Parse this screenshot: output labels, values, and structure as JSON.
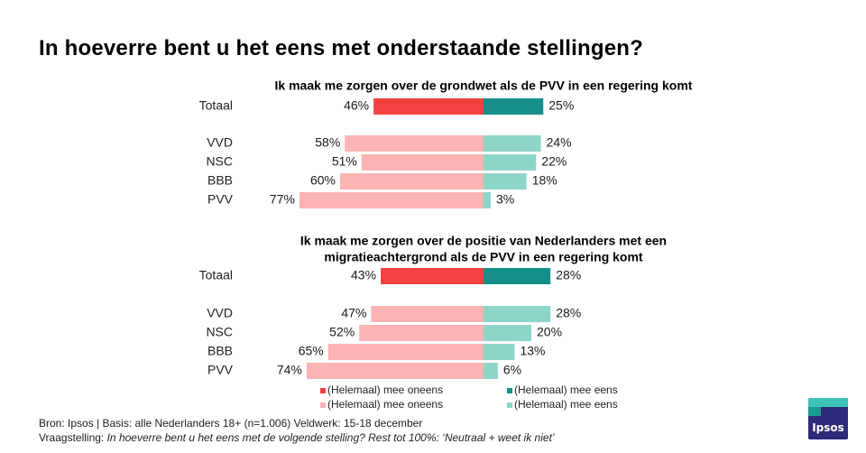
{
  "title": "In hoeverre bent u het eens met onderstaande stellingen?",
  "colors": {
    "total_disagree": "#f2413f",
    "total_agree": "#148f8a",
    "party_disagree": "#fbb3b3",
    "party_agree": "#8ed5c9"
  },
  "chart_data": [
    {
      "type": "bar",
      "orientation": "horizontal-diverging",
      "title": "Ik maak me zorgen over de grondwet als de PVV in een regering komt",
      "categories": [
        "Totaal",
        "VVD",
        "NSC",
        "BBB",
        "PVV"
      ],
      "series": [
        {
          "name": "(Helemaal) mee oneens",
          "values": [
            46,
            58,
            51,
            60,
            77
          ]
        },
        {
          "name": "(Helemaal) mee eens",
          "values": [
            25,
            24,
            22,
            18,
            3
          ]
        }
      ],
      "unit": "%"
    },
    {
      "type": "bar",
      "orientation": "horizontal-diverging",
      "title_lines": [
        "Ik maak me zorgen over de positie van Nederlanders met een",
        "migratieachtergrond als de PVV in een regering komt"
      ],
      "categories": [
        "Totaal",
        "VVD",
        "NSC",
        "BBB",
        "PVV"
      ],
      "series": [
        {
          "name": "(Helemaal) mee oneens",
          "values": [
            43,
            47,
            52,
            65,
            74
          ]
        },
        {
          "name": "(Helemaal) mee eens",
          "values": [
            28,
            28,
            20,
            13,
            6
          ]
        }
      ],
      "unit": "%"
    }
  ],
  "legend": [
    {
      "label": "(Helemaal) mee oneens",
      "color": "#f2413f"
    },
    {
      "label": "(Helemaal) mee eens",
      "color": "#148f8a"
    },
    {
      "label": "(Helemaal) mee oneens",
      "color": "#fbb3b3"
    },
    {
      "label": "(Helemaal) mee eens",
      "color": "#8ed5c9"
    }
  ],
  "source": {
    "line1": "Bron: Ipsos | Basis: alle Nederlanders  18+ (n=1.006) Veldwerk:  15-18 december",
    "line2_prefix": "Vraagstelling:",
    "line2_italic": " In hoeverre  bent u het eens met de volgende  stelling? Rest tot 100%:  ‘Neutraal + weet ik niet’"
  },
  "logo_text": "Ipsos"
}
